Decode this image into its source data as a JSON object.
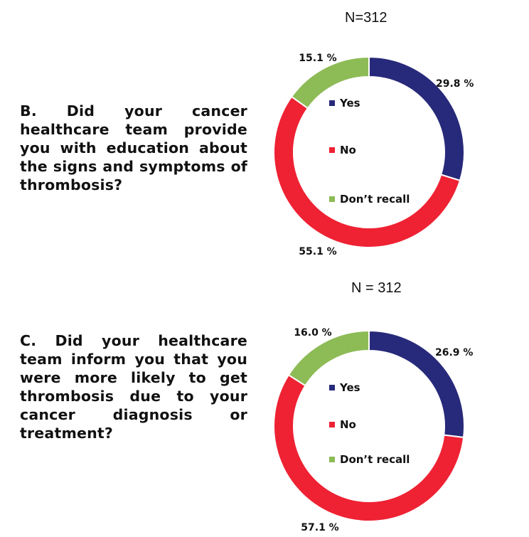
{
  "chart_data": [
    {
      "type": "pie",
      "n_label": "N=312",
      "question": "B. Did your cancer healthcare team provide you with education about the signs and symptoms of thrombosis?",
      "categories": [
        "Yes",
        "No",
        "Don’t recall"
      ],
      "values": [
        29.8,
        55.1,
        15.1
      ],
      "value_labels": [
        "29.8 %",
        "55.1 %",
        "15.1 %"
      ],
      "colors": [
        "#27297a",
        "#ee2233",
        "#8dbb56"
      ],
      "legend": "center"
    },
    {
      "type": "pie",
      "n_label": "N = 312",
      "question": "C. Did your healthcare team inform you that you were more likely to get thrombosis due to your cancer diagnosis or treatment?",
      "categories": [
        "Yes",
        "No",
        "Don’t recall"
      ],
      "values": [
        26.9,
        57.1,
        16.0
      ],
      "value_labels": [
        "26.9 %",
        "57.1 %",
        "16.0 %"
      ],
      "colors": [
        "#27297a",
        "#ee2233",
        "#8dbb56"
      ],
      "legend": "center"
    }
  ]
}
